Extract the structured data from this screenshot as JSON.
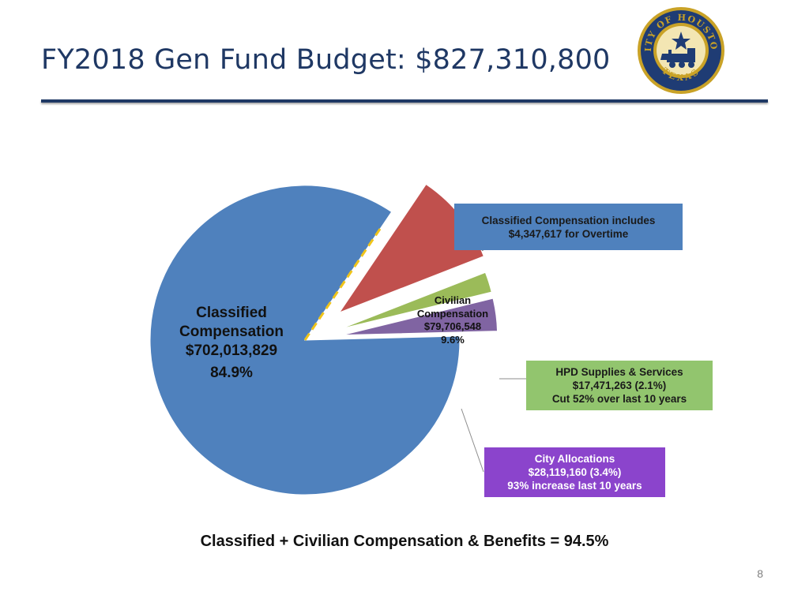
{
  "slide": {
    "title": "FY2018 Gen Fund Budget: $827,310,800",
    "footer": "Classified + Civilian Compensation & Benefits = 94.5%",
    "page_number": "8"
  },
  "seal": {
    "top_text": "CITY OF HOUSTON",
    "bottom_text": "TEXAS",
    "colors": {
      "gold": "#c9a227",
      "navy": "#1f3c74"
    }
  },
  "chart_data": {
    "type": "pie",
    "title": "FY2018 Gen Fund Budget: $827,310,800",
    "total": 827310800,
    "slices": [
      {
        "key": "classified",
        "name": "Classified Compensation",
        "name_lines": [
          "Classified",
          "Compensation"
        ],
        "value": 702013829,
        "value_label": "$702,013,829",
        "percent": 84.9,
        "percent_label": "84.9%",
        "color": "#4f81bd",
        "exploded": false
      },
      {
        "key": "civilian",
        "name": "Civilian Compensation",
        "name_lines": [
          "Civilian",
          "Compensation"
        ],
        "value": 79706548,
        "value_label": "$79,706,548",
        "percent": 9.6,
        "percent_label": "9.6%",
        "color": "#c0504d",
        "exploded": true
      },
      {
        "key": "hpd",
        "name": "HPD Supplies & Services",
        "value": 17471263,
        "value_label": "$17,471,263",
        "percent": 2.1,
        "percent_label": "(2.1%)",
        "color": "#9bbb59",
        "exploded": true
      },
      {
        "key": "city",
        "name": "City Allocations",
        "value": 28119160,
        "value_label": "$28,119,160",
        "percent": 3.4,
        "percent_label": "(3.4%)",
        "color": "#8064a2",
        "exploded": true
      }
    ],
    "overtime_portion": {
      "value": 4347617,
      "color": "#f0c419"
    },
    "callouts": {
      "overtime": {
        "lines": [
          "Classified Compensation includes",
          "$4,347,617 for Overtime"
        ],
        "bg": "#4f81bd"
      },
      "hpd": {
        "lines": [
          "HPD Supplies & Services",
          "$17,471,263  (2.1%)",
          "Cut 52% over last 10 years"
        ],
        "bg": "#92c56e"
      },
      "city": {
        "lines": [
          "City Allocations",
          "$28,119,160 (3.4%)",
          "93% increase last 10 years"
        ],
        "bg": "#8b44cc",
        "text_color": "#ffffff"
      }
    }
  }
}
